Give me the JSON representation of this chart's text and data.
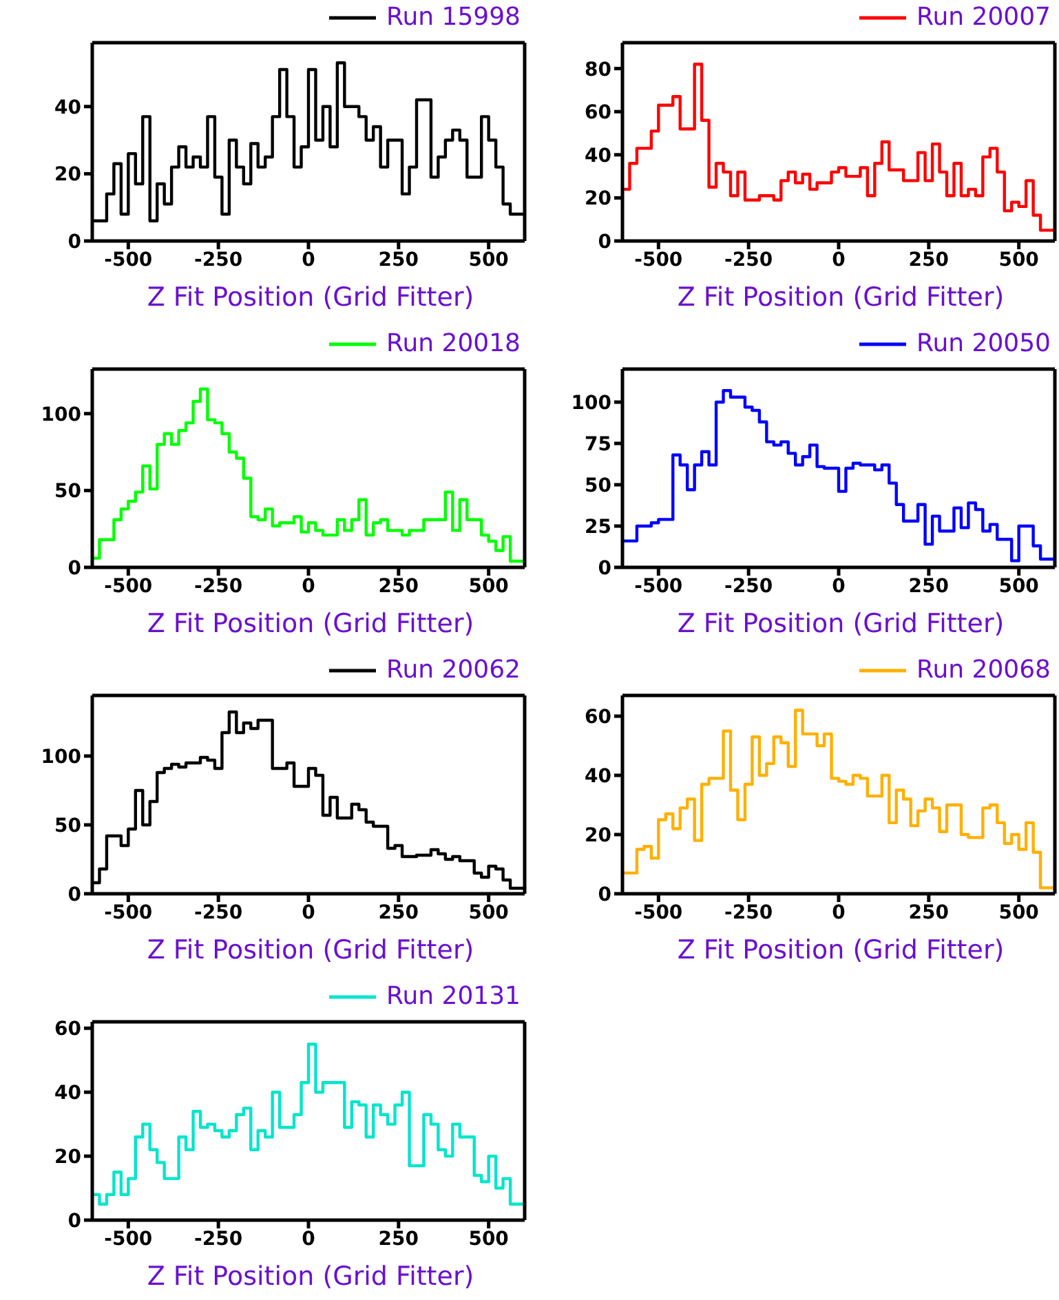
{
  "chart_data": [
    {
      "type": "histogram",
      "xlabel": "Z Fit Position (Grid Fitter)",
      "bins": [
        -600,
        -580,
        -560,
        -540,
        -520,
        -500,
        -480,
        -460,
        -440,
        -420,
        -400,
        -380,
        -360,
        -340,
        -320,
        -300,
        -280,
        -260,
        -240,
        -220,
        -200,
        -180,
        -160,
        -140,
        -120,
        -100,
        -80,
        -60,
        -40,
        -20,
        0,
        20,
        40,
        60,
        80,
        100,
        120,
        140,
        160,
        180,
        200,
        220,
        240,
        260,
        280,
        300,
        320,
        340,
        360,
        380,
        400,
        420,
        440,
        460,
        480,
        500,
        520,
        540,
        560,
        580,
        600
      ],
      "xlim": [
        -600,
        600
      ],
      "xticks": [
        -500,
        -250,
        0,
        250,
        500
      ],
      "ylim": [
        0,
        59
      ],
      "yticks": [
        0,
        20,
        40
      ],
      "legend": "top right",
      "series": [
        {
          "name": "Run 15998",
          "color": "#000000",
          "values": [
            6,
            6,
            14,
            23,
            8,
            26,
            17,
            37,
            6,
            17,
            11,
            22,
            28,
            22,
            25,
            22,
            37,
            19,
            8,
            30,
            22,
            17,
            29,
            22,
            25,
            37,
            51,
            37,
            22,
            28,
            51,
            30,
            40,
            28,
            53,
            40,
            40,
            37,
            30,
            34,
            22,
            30,
            30,
            14,
            22,
            42,
            42,
            19,
            25,
            30,
            33,
            30,
            19,
            19,
            37,
            30,
            22,
            11,
            8,
            8
          ]
        }
      ]
    },
    {
      "type": "histogram",
      "xlabel": "Z Fit Position (Grid Fitter)",
      "bins": [
        -600,
        -580,
        -560,
        -540,
        -520,
        -500,
        -480,
        -460,
        -440,
        -420,
        -400,
        -380,
        -360,
        -340,
        -320,
        -300,
        -280,
        -260,
        -240,
        -220,
        -200,
        -180,
        -160,
        -140,
        -120,
        -100,
        -80,
        -60,
        -40,
        -20,
        0,
        20,
        40,
        60,
        80,
        100,
        120,
        140,
        160,
        180,
        200,
        220,
        240,
        260,
        280,
        300,
        320,
        340,
        360,
        380,
        400,
        420,
        440,
        460,
        480,
        500,
        520,
        540,
        560,
        580,
        600
      ],
      "xlim": [
        -600,
        600
      ],
      "xticks": [
        -500,
        -250,
        0,
        250,
        500
      ],
      "ylim": [
        0,
        92
      ],
      "yticks": [
        0,
        20,
        40,
        60,
        80
      ],
      "legend": "top right",
      "series": [
        {
          "name": "Run 20007",
          "color": "#ff0000",
          "values": [
            24,
            36,
            43,
            43,
            51,
            63,
            63,
            67,
            52,
            52,
            82,
            56,
            25,
            36,
            32,
            21,
            32,
            19,
            19,
            21,
            21,
            19,
            28,
            32,
            27,
            31,
            24,
            27,
            27,
            32,
            34,
            30,
            30,
            34,
            21,
            36,
            46,
            33,
            33,
            28,
            28,
            41,
            28,
            45,
            32,
            21,
            36,
            21,
            24,
            21,
            39,
            43,
            32,
            14,
            18,
            16,
            28,
            12,
            5,
            5
          ]
        }
      ]
    },
    {
      "type": "histogram",
      "xlabel": "Z Fit Position (Grid Fitter)",
      "bins": [
        -600,
        -580,
        -560,
        -540,
        -520,
        -500,
        -480,
        -460,
        -440,
        -420,
        -400,
        -380,
        -360,
        -340,
        -320,
        -300,
        -280,
        -260,
        -240,
        -220,
        -200,
        -180,
        -160,
        -140,
        -120,
        -100,
        -80,
        -60,
        -40,
        -20,
        0,
        20,
        40,
        60,
        80,
        100,
        120,
        140,
        160,
        180,
        200,
        220,
        240,
        260,
        280,
        300,
        320,
        340,
        360,
        380,
        400,
        420,
        440,
        460,
        480,
        500,
        520,
        540,
        560,
        580,
        600
      ],
      "xlim": [
        -600,
        600
      ],
      "xticks": [
        -500,
        -250,
        0,
        250,
        500
      ],
      "ylim": [
        0,
        129
      ],
      "yticks": [
        0,
        50,
        100
      ],
      "legend": "top right",
      "series": [
        {
          "name": "Run 20018",
          "color": "#00ff00",
          "values": [
            6,
            18,
            18,
            31,
            38,
            43,
            49,
            66,
            51,
            80,
            87,
            80,
            89,
            94,
            108,
            116,
            96,
            94,
            87,
            75,
            71,
            58,
            33,
            31,
            38,
            27,
            29,
            29,
            33,
            23,
            29,
            24,
            21,
            21,
            31,
            24,
            31,
            44,
            21,
            29,
            31,
            24,
            24,
            21,
            24,
            24,
            31,
            31,
            31,
            49,
            24,
            44,
            31,
            31,
            21,
            17,
            11,
            20,
            4,
            4
          ]
        }
      ]
    },
    {
      "type": "histogram",
      "xlabel": "Z Fit Position (Grid Fitter)",
      "bins": [
        -600,
        -580,
        -560,
        -540,
        -520,
        -500,
        -480,
        -460,
        -440,
        -420,
        -400,
        -380,
        -360,
        -340,
        -320,
        -300,
        -280,
        -260,
        -240,
        -220,
        -200,
        -180,
        -160,
        -140,
        -120,
        -100,
        -80,
        -60,
        -40,
        -20,
        0,
        20,
        40,
        60,
        80,
        100,
        120,
        140,
        160,
        180,
        200,
        220,
        240,
        260,
        280,
        300,
        320,
        340,
        360,
        380,
        400,
        420,
        440,
        460,
        480,
        500,
        520,
        540,
        560,
        580,
        600
      ],
      "xlim": [
        -600,
        600
      ],
      "xticks": [
        -500,
        -250,
        0,
        250,
        500
      ],
      "ylim": [
        0,
        120
      ],
      "yticks": [
        0,
        25,
        50,
        75,
        100
      ],
      "legend": "top right",
      "series": [
        {
          "name": "Run 20050",
          "color": "#0000ff",
          "values": [
            16,
            16,
            25,
            25,
            27,
            29,
            29,
            68,
            62,
            47,
            62,
            70,
            62,
            100,
            107,
            103,
            103,
            97,
            95,
            88,
            76,
            74,
            76,
            69,
            62,
            67,
            74,
            61,
            60,
            60,
            46,
            60,
            63,
            62,
            62,
            59,
            62,
            51,
            38,
            28,
            28,
            38,
            14,
            31,
            22,
            22,
            36,
            24,
            39,
            35,
            22,
            26,
            17,
            17,
            4,
            25,
            25,
            13,
            5,
            5
          ]
        }
      ]
    },
    {
      "type": "histogram",
      "xlabel": "Z Fit Position (Grid Fitter)",
      "bins": [
        -600,
        -580,
        -560,
        -540,
        -520,
        -500,
        -480,
        -460,
        -440,
        -420,
        -400,
        -380,
        -360,
        -340,
        -320,
        -300,
        -280,
        -260,
        -240,
        -220,
        -200,
        -180,
        -160,
        -140,
        -120,
        -100,
        -80,
        -60,
        -40,
        -20,
        0,
        20,
        40,
        60,
        80,
        100,
        120,
        140,
        160,
        180,
        200,
        220,
        240,
        260,
        280,
        300,
        320,
        340,
        360,
        380,
        400,
        420,
        440,
        460,
        480,
        500,
        520,
        540,
        560,
        580,
        600
      ],
      "xlim": [
        -600,
        600
      ],
      "xticks": [
        -500,
        -250,
        0,
        250,
        500
      ],
      "ylim": [
        0,
        144
      ],
      "yticks": [
        0,
        50,
        100
      ],
      "legend": "top right",
      "series": [
        {
          "name": "Run 20062",
          "color": "#000000",
          "values": [
            8,
            18,
            42,
            42,
            35,
            47,
            75,
            50,
            67,
            88,
            91,
            94,
            92,
            95,
            95,
            99,
            97,
            91,
            117,
            132,
            117,
            124,
            120,
            126,
            126,
            91,
            91,
            95,
            78,
            78,
            91,
            86,
            57,
            70,
            55,
            55,
            65,
            61,
            52,
            49,
            49,
            33,
            35,
            27,
            27,
            28,
            28,
            32,
            29,
            25,
            27,
            24,
            24,
            15,
            12,
            20,
            18,
            10,
            4,
            4
          ]
        }
      ]
    },
    {
      "type": "histogram",
      "xlabel": "Z Fit Position (Grid Fitter)",
      "bins": [
        -600,
        -580,
        -560,
        -540,
        -520,
        -500,
        -480,
        -460,
        -440,
        -420,
        -400,
        -380,
        -360,
        -340,
        -320,
        -300,
        -280,
        -260,
        -240,
        -220,
        -200,
        -180,
        -160,
        -140,
        -120,
        -100,
        -80,
        -60,
        -40,
        -20,
        0,
        20,
        40,
        60,
        80,
        100,
        120,
        140,
        160,
        180,
        200,
        220,
        240,
        260,
        280,
        300,
        320,
        340,
        360,
        380,
        400,
        420,
        440,
        460,
        480,
        500,
        520,
        540,
        560,
        580,
        600
      ],
      "xlim": [
        -600,
        600
      ],
      "xticks": [
        -500,
        -250,
        0,
        250,
        500
      ],
      "ylim": [
        0,
        67
      ],
      "yticks": [
        0,
        20,
        40,
        60
      ],
      "legend": "top right",
      "series": [
        {
          "name": "Run 20068",
          "color": "#ffb000",
          "values": [
            7,
            7,
            15,
            16,
            12,
            25,
            27,
            22,
            29,
            32,
            18,
            37,
            39,
            39,
            55,
            35,
            25,
            37,
            53,
            40,
            44,
            53,
            51,
            43,
            62,
            54,
            54,
            50,
            54,
            39,
            38,
            37,
            40,
            39,
            33,
            33,
            40,
            24,
            35,
            32,
            23,
            28,
            32,
            29,
            21,
            30,
            30,
            20,
            19,
            19,
            29,
            30,
            24,
            17,
            20,
            15,
            24,
            14,
            2,
            2
          ]
        }
      ]
    },
    {
      "type": "histogram",
      "xlabel": "Z Fit Position (Grid Fitter)",
      "bins": [
        -600,
        -580,
        -560,
        -540,
        -520,
        -500,
        -480,
        -460,
        -440,
        -420,
        -400,
        -380,
        -360,
        -340,
        -320,
        -300,
        -280,
        -260,
        -240,
        -220,
        -200,
        -180,
        -160,
        -140,
        -120,
        -100,
        -80,
        -60,
        -40,
        -20,
        0,
        20,
        40,
        60,
        80,
        100,
        120,
        140,
        160,
        180,
        200,
        220,
        240,
        260,
        280,
        300,
        320,
        340,
        360,
        380,
        400,
        420,
        440,
        460,
        480,
        500,
        520,
        540,
        560,
        580,
        600
      ],
      "xlim": [
        -600,
        600
      ],
      "xticks": [
        -500,
        -250,
        0,
        250,
        500
      ],
      "ylim": [
        0,
        62
      ],
      "yticks": [
        0,
        20,
        40,
        60
      ],
      "legend": "top right",
      "series": [
        {
          "name": "Run 20131",
          "color": "#00e5cc",
          "values": [
            8,
            5,
            8,
            15,
            8,
            13,
            26,
            30,
            22,
            18,
            13,
            13,
            26,
            22,
            34,
            29,
            30,
            28,
            26,
            28,
            33,
            35,
            22,
            28,
            26,
            40,
            29,
            29,
            33,
            43,
            55,
            40,
            43,
            43,
            43,
            29,
            37,
            36,
            26,
            36,
            33,
            30,
            36,
            40,
            17,
            17,
            33,
            30,
            22,
            20,
            30,
            26,
            26,
            14,
            12,
            20,
            10,
            13,
            5,
            5
          ]
        }
      ]
    }
  ]
}
